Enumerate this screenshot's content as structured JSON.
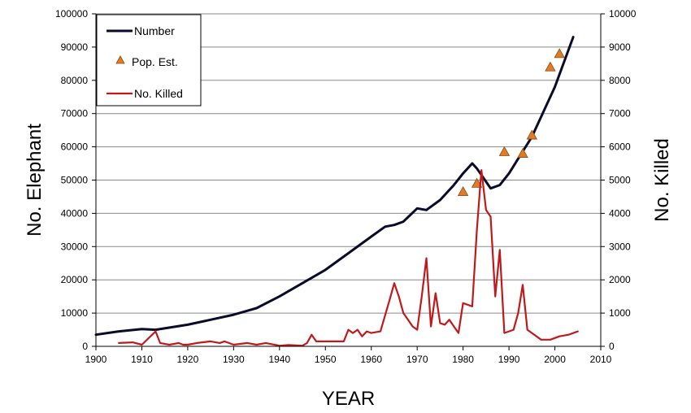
{
  "chart_data": {
    "type": "line",
    "xlabel": "YEAR",
    "ylabel_left": "No. Elephant",
    "ylabel_right": "No. Killed",
    "xlim": [
      1900,
      2010
    ],
    "ylim_left": [
      0,
      100000
    ],
    "ylim_right": [
      0,
      10000
    ],
    "x_ticks": [
      1900,
      1910,
      1920,
      1930,
      1940,
      1950,
      1960,
      1970,
      1980,
      1990,
      2000,
      2010
    ],
    "y_left_ticks": [
      0,
      10000,
      20000,
      30000,
      40000,
      50000,
      60000,
      70000,
      80000,
      90000,
      100000
    ],
    "y_right_ticks": [
      0,
      1000,
      2000,
      3000,
      4000,
      5000,
      6000,
      7000,
      8000,
      9000,
      10000
    ],
    "grid": "horizontal",
    "legend_position": "top-left",
    "series": [
      {
        "name": "Number",
        "type": "line",
        "axis": "left",
        "color": "#0a0a2a",
        "points": [
          [
            1900,
            3500
          ],
          [
            1905,
            4500
          ],
          [
            1910,
            5200
          ],
          [
            1913,
            5000
          ],
          [
            1920,
            6500
          ],
          [
            1930,
            9500
          ],
          [
            1935,
            11500
          ],
          [
            1940,
            15000
          ],
          [
            1945,
            19000
          ],
          [
            1950,
            23000
          ],
          [
            1955,
            28000
          ],
          [
            1960,
            33000
          ],
          [
            1963,
            36000
          ],
          [
            1965,
            36500
          ],
          [
            1967,
            37500
          ],
          [
            1970,
            41500
          ],
          [
            1972,
            41000
          ],
          [
            1975,
            44000
          ],
          [
            1978,
            48500
          ],
          [
            1980,
            52000
          ],
          [
            1982,
            55000
          ],
          [
            1983,
            53500
          ],
          [
            1985,
            49500
          ],
          [
            1986,
            47500
          ],
          [
            1988,
            48500
          ],
          [
            1990,
            52000
          ],
          [
            1995,
            63000
          ],
          [
            2000,
            78000
          ],
          [
            2004,
            93000
          ]
        ]
      },
      {
        "name": "Pop. Est.",
        "type": "scatter",
        "axis": "left",
        "color": "#e07b28",
        "points": [
          [
            1980,
            46500
          ],
          [
            1983,
            49000
          ],
          [
            1989,
            58500
          ],
          [
            1993,
            58000
          ],
          [
            1995,
            63500
          ],
          [
            1999,
            84000
          ],
          [
            2001,
            88000
          ]
        ]
      },
      {
        "name": "No. Killed",
        "type": "line",
        "axis": "right",
        "color": "#c0191c",
        "points": [
          [
            1905,
            100
          ],
          [
            1908,
            120
          ],
          [
            1910,
            50
          ],
          [
            1913,
            450
          ],
          [
            1914,
            100
          ],
          [
            1916,
            50
          ],
          [
            1918,
            100
          ],
          [
            1919,
            50
          ],
          [
            1920,
            50
          ],
          [
            1922,
            100
          ],
          [
            1925,
            150
          ],
          [
            1927,
            100
          ],
          [
            1928,
            150
          ],
          [
            1930,
            50
          ],
          [
            1933,
            100
          ],
          [
            1935,
            50
          ],
          [
            1937,
            100
          ],
          [
            1940,
            20
          ],
          [
            1942,
            40
          ],
          [
            1945,
            20
          ],
          [
            1946,
            100
          ],
          [
            1947,
            350
          ],
          [
            1948,
            150
          ],
          [
            1950,
            150
          ],
          [
            1954,
            150
          ],
          [
            1955,
            500
          ],
          [
            1956,
            400
          ],
          [
            1957,
            500
          ],
          [
            1958,
            300
          ],
          [
            1959,
            450
          ],
          [
            1960,
            400
          ],
          [
            1962,
            450
          ],
          [
            1964,
            1400
          ],
          [
            1965,
            1900
          ],
          [
            1966,
            1500
          ],
          [
            1967,
            1000
          ],
          [
            1968,
            800
          ],
          [
            1969,
            600
          ],
          [
            1970,
            500
          ],
          [
            1971,
            1500
          ],
          [
            1972,
            2650
          ],
          [
            1973,
            600
          ],
          [
            1974,
            1600
          ],
          [
            1975,
            700
          ],
          [
            1976,
            650
          ],
          [
            1977,
            800
          ],
          [
            1978,
            600
          ],
          [
            1979,
            400
          ],
          [
            1980,
            1300
          ],
          [
            1982,
            1200
          ],
          [
            1983,
            3500
          ],
          [
            1984,
            5300
          ],
          [
            1985,
            4100
          ],
          [
            1986,
            3900
          ],
          [
            1987,
            1500
          ],
          [
            1988,
            2900
          ],
          [
            1989,
            400
          ],
          [
            1991,
            500
          ],
          [
            1992,
            1000
          ],
          [
            1993,
            1850
          ],
          [
            1994,
            500
          ],
          [
            1995,
            400
          ],
          [
            1997,
            200
          ],
          [
            1999,
            200
          ],
          [
            2001,
            300
          ],
          [
            2003,
            350
          ],
          [
            2005,
            450
          ]
        ]
      }
    ]
  }
}
